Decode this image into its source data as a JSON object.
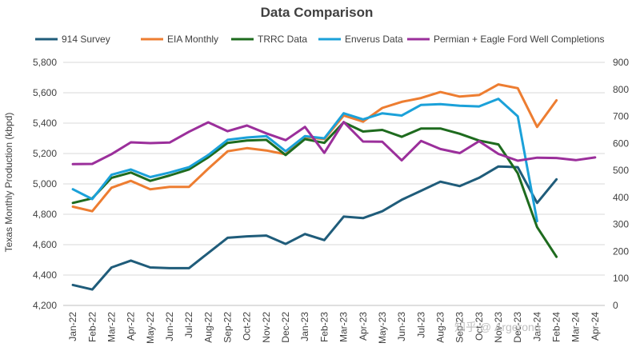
{
  "chart_data": {
    "type": "line",
    "title": "Data Comparison",
    "ylabel": "Texas Monthly Production (kbpd)",
    "y2label": "",
    "ylim": [
      4200,
      5800
    ],
    "yticks": [
      "4,200",
      "4,400",
      "4,600",
      "4,800",
      "5,000",
      "5,200",
      "5,400",
      "5,600",
      "5,800"
    ],
    "y2lim": [
      0,
      900
    ],
    "y2ticks": [
      "0",
      "100",
      "200",
      "300",
      "400",
      "500",
      "600",
      "700",
      "800",
      "900"
    ],
    "categories": [
      "Jan-22",
      "Feb-22",
      "Mar-22",
      "Apr-22",
      "May-22",
      "Jun-22",
      "Jul-22",
      "Aug-22",
      "Sep-22",
      "Oct-22",
      "Nov-22",
      "Dec-22",
      "Jan-23",
      "Feb-23",
      "Mar-23",
      "Apr-23",
      "May-23",
      "Jun-23",
      "Jul-23",
      "Aug-23",
      "Sep-23",
      "Oct-23",
      "Nov-23",
      "Dec-23",
      "Jan-24",
      "Feb-24",
      "Mar-24",
      "Apr-24"
    ],
    "legend_position": "top",
    "series": [
      {
        "name": "914 Survey",
        "color": "#1f5c7a",
        "axis": "left",
        "values": [
          4335,
          4305,
          4450,
          4495,
          4450,
          4445,
          4445,
          4545,
          4645,
          4655,
          4660,
          4605,
          4670,
          4630,
          4785,
          4775,
          4820,
          4895,
          4955,
          5015,
          4985,
          5040,
          5115,
          5110,
          4875,
          5030,
          null,
          null
        ]
      },
      {
        "name": "EIA Monthly",
        "color": "#ed7d31",
        "axis": "left",
        "values": [
          4850,
          4820,
          4975,
          5020,
          4965,
          4980,
          4980,
          5100,
          5215,
          5235,
          5220,
          5195,
          5310,
          5295,
          5450,
          5410,
          5500,
          5540,
          5565,
          5605,
          5575,
          5585,
          5655,
          5630,
          5375,
          5550,
          null,
          null
        ]
      },
      {
        "name": "TRRC Data",
        "color": "#1e6b1e",
        "axis": "left",
        "values": [
          4875,
          4905,
          5040,
          5075,
          5020,
          5055,
          5095,
          5175,
          5270,
          5285,
          5290,
          5190,
          5295,
          5270,
          5405,
          5345,
          5355,
          5310,
          5365,
          5365,
          5330,
          5285,
          5260,
          5070,
          4715,
          4520,
          null,
          null
        ]
      },
      {
        "name": "Enverus Data",
        "color": "#1ba1d9",
        "axis": "left",
        "values": [
          4965,
          4900,
          5060,
          5095,
          5045,
          5075,
          5110,
          5190,
          5290,
          5305,
          5315,
          5215,
          5315,
          5300,
          5465,
          5425,
          5465,
          5450,
          5520,
          5525,
          5515,
          5510,
          5560,
          5445,
          4755,
          null,
          null,
          null
        ]
      },
      {
        "name": "Permian + Eagle Ford Well Completions",
        "color": "#9b2f9b",
        "axis": "right",
        "values": [
          523,
          524,
          560,
          604,
          601,
          603,
          643,
          678,
          645,
          666,
          637,
          612,
          661,
          565,
          679,
          607,
          606,
          537,
          609,
          579,
          564,
          608,
          561,
          536,
          547,
          546,
          538,
          548
        ]
      }
    ]
  },
  "watermark": "知乎 @ Argerong"
}
